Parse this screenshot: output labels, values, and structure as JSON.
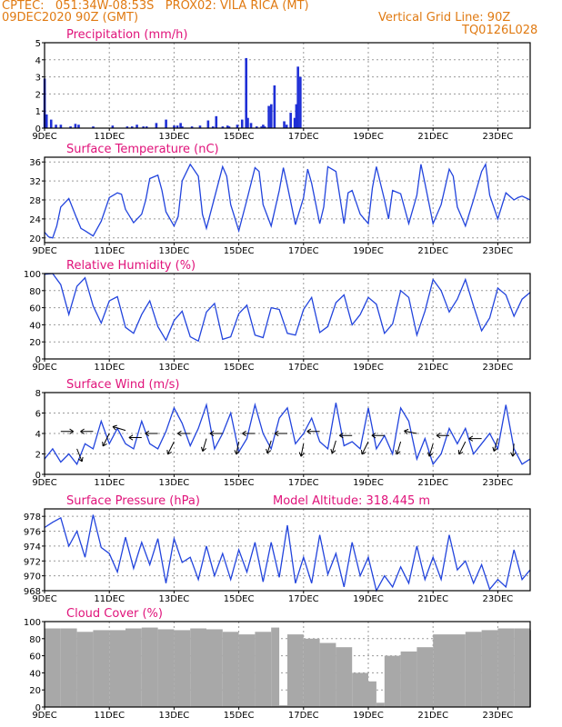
{
  "header": {
    "station_line": "CPTEC:   051:34W-08:53S   PROX02: VILA RICA (MT)",
    "date_line": "09DEC2020 90Z (GMT)",
    "grid_note": "Vertical Grid Line: 90Z",
    "code": "TQ0126L028"
  },
  "colors": {
    "header": "#e07a12",
    "panel_title": "#e0127a",
    "line": "#2244dd",
    "bar": "#1f2fd6",
    "cloud": "#a8a8a8",
    "grid": "#9a9a9a",
    "arrow": "#000000"
  },
  "x_tick_labels": [
    "9DEC",
    "11DEC",
    "13DEC",
    "15DEC",
    "17DEC",
    "19DEC",
    "21DEC",
    "23DEC"
  ],
  "chart_data": [
    {
      "type": "bar",
      "title": "Precipitation (mm/h)",
      "ylim": [
        0,
        5
      ],
      "yticks": [
        0,
        1,
        2,
        3,
        4,
        5
      ],
      "series": [
        {
          "color": "#1f2fd6",
          "x": [
            0.0,
            0.12,
            0.4,
            0.7,
            1.0,
            1.6,
            1.9,
            2.1,
            3.0,
            4.2,
            5.1,
            5.4,
            5.7,
            6.1,
            6.3,
            6.9,
            7.5,
            8.0,
            8.2,
            8.4,
            8.5,
            9.1,
            9.6,
            10.1,
            10.4,
            10.6,
            11.0,
            11.3,
            11.4,
            11.9,
            12.2,
            12.45,
            12.55,
            12.75,
            13.1,
            13.4,
            13.5,
            13.6,
            13.85,
            14.0,
            14.2,
            14.8,
            14.95,
            15.2,
            15.45,
            15.55,
            15.65,
            15.8
          ],
          "values": [
            2.9,
            0.8,
            0.5,
            0.2,
            0.2,
            0.1,
            0.25,
            0.2,
            0.1,
            0.15,
            0.1,
            0.1,
            0.2,
            0.1,
            0.1,
            0.3,
            0.5,
            0.15,
            0.15,
            0.3,
            0.1,
            0.1,
            0.15,
            0.45,
            0.1,
            0.7,
            0.1,
            0.15,
            0.1,
            0.2,
            0.5,
            4.1,
            0.6,
            0.3,
            0.1,
            0.1,
            0.2,
            0.1,
            1.3,
            1.4,
            2.5,
            0.4,
            0.2,
            0.9,
            0.6,
            1.4,
            3.6,
            3.0
          ]
        }
      ]
    },
    {
      "type": "line",
      "title": "Surface Temperature (nC)",
      "ylim": [
        19,
        37
      ],
      "yticks": [
        20,
        24,
        28,
        32,
        36
      ],
      "series": [
        {
          "color": "#2244dd",
          "x": [
            0,
            0.25,
            0.5,
            0.75,
            1.0,
            1.5,
            2.0,
            2.25,
            2.5,
            3.0,
            3.5,
            4.0,
            4.5,
            4.75,
            5.0,
            5.5,
            6.0,
            6.25,
            6.5,
            7.0,
            7.25,
            7.5,
            8.0,
            8.25,
            8.5,
            9.0,
            9.5,
            9.75,
            10.0,
            10.5,
            11.0,
            11.25,
            11.5,
            12.0,
            12.5,
            13.0,
            13.25,
            13.5,
            14.0,
            14.5,
            14.75,
            15.0,
            15.5,
            16.0,
            16.25,
            16.5,
            17.0,
            17.25,
            17.5,
            18.0,
            18.5,
            18.75,
            19.0,
            19.5,
            20.0,
            20.25,
            20.5,
            21.0,
            21.25,
            21.5,
            22.0,
            22.5,
            23.0,
            23.25,
            23.5,
            24.0,
            24.5,
            25.0,
            25.25,
            25.5,
            26.0,
            26.5,
            27.0,
            27.25,
            27.5,
            28.0,
            28.5,
            29.0,
            29.25,
            29.5,
            30.0
          ],
          "values": [
            21.2,
            20.2,
            20.0,
            22.5,
            26.5,
            28.3,
            24.0,
            22.0,
            21.5,
            20.4,
            23.5,
            28.5,
            29.5,
            29.2,
            26.0,
            23.2,
            25.0,
            28.0,
            32.5,
            33.2,
            30.0,
            25.5,
            22.5,
            24.5,
            32.0,
            35.5,
            33.0,
            25.0,
            22.0,
            28.5,
            35.0,
            33.0,
            27.0,
            21.5,
            28.0,
            34.8,
            34.0,
            27.0,
            22.5,
            30.0,
            34.8,
            31.0,
            22.8,
            28.5,
            34.5,
            31.5,
            23.0,
            26.5,
            35.0,
            34.0,
            23.0,
            29.5,
            30.0,
            25.0,
            23.0,
            30.5,
            35.0,
            28.0,
            24.0,
            30.0,
            29.3,
            23.0,
            29.0,
            35.5,
            31.5,
            23.0,
            27.0,
            34.5,
            33.0,
            26.5,
            22.5,
            28.0,
            34.0,
            35.5,
            29.0,
            24.0,
            29.5,
            28.0,
            28.5,
            28.8,
            28.0
          ]
        }
      ]
    },
    {
      "type": "line",
      "title": "Relative Humidity (%)",
      "ylim": [
        0,
        100
      ],
      "yticks": [
        0,
        20,
        40,
        60,
        80,
        100
      ],
      "series": [
        {
          "color": "#2244dd",
          "x": [
            0,
            0.5,
            1.0,
            1.5,
            2.0,
            2.5,
            3.0,
            3.5,
            4.0,
            4.5,
            5.0,
            5.5,
            6.0,
            6.5,
            7.0,
            7.5,
            8.0,
            8.5,
            9.0,
            9.5,
            10.0,
            10.5,
            11.0,
            11.5,
            12.0,
            12.5,
            13.0,
            13.5,
            14.0,
            14.5,
            15.0,
            15.5,
            16.0,
            16.5,
            17.0,
            17.5,
            18.0,
            18.5,
            19.0,
            19.5,
            20.0,
            20.5,
            21.0,
            21.5,
            22.0,
            22.5,
            23.0,
            23.5,
            24.0,
            24.5,
            25.0,
            25.5,
            26.0,
            26.5,
            27.0,
            27.5,
            28.0,
            28.5,
            29.0,
            29.5,
            30.0
          ],
          "values": [
            99,
            100,
            87,
            52,
            85,
            95,
            62,
            42,
            68,
            73,
            37,
            30,
            52,
            68,
            38,
            22,
            45,
            56,
            26,
            21,
            55,
            65,
            23,
            26,
            53,
            63,
            28,
            25,
            60,
            58,
            30,
            28,
            58,
            72,
            31,
            38,
            66,
            75,
            40,
            52,
            72,
            64,
            30,
            41,
            80,
            72,
            28,
            56,
            93,
            80,
            55,
            70,
            93,
            62,
            33,
            48,
            83,
            75,
            50,
            70,
            78
          ]
        }
      ]
    },
    {
      "type": "line",
      "title": "Surface Wind (m/s)",
      "ylim": [
        0,
        8
      ],
      "yticks": [
        0,
        2,
        4,
        6,
        8
      ],
      "series": [
        {
          "color": "#2244dd",
          "x": [
            0,
            0.5,
            1.0,
            1.5,
            2.0,
            2.5,
            3.0,
            3.5,
            4.0,
            4.5,
            5.0,
            5.5,
            6.0,
            6.5,
            7.0,
            7.5,
            8.0,
            8.5,
            9.0,
            9.5,
            10.0,
            10.5,
            11.0,
            11.5,
            12.0,
            12.5,
            13.0,
            13.5,
            14.0,
            14.5,
            15.0,
            15.5,
            16.0,
            16.5,
            17.0,
            17.5,
            18.0,
            18.5,
            19.0,
            19.5,
            20.0,
            20.5,
            21.0,
            21.5,
            22.0,
            22.5,
            23.0,
            23.5,
            24.0,
            24.5,
            25.0,
            25.5,
            26.0,
            26.5,
            27.0,
            27.5,
            28.0,
            28.5,
            29.0,
            29.5,
            30.0
          ],
          "values": [
            1.5,
            2.5,
            1.2,
            2.0,
            1.0,
            3.0,
            2.5,
            5.2,
            3.0,
            4.5,
            3.0,
            2.5,
            5.2,
            3.0,
            2.5,
            4.2,
            6.5,
            5.0,
            2.8,
            4.5,
            6.8,
            2.5,
            4.0,
            6.0,
            2.2,
            3.5,
            6.8,
            4.0,
            2.5,
            5.5,
            6.5,
            3.0,
            4.0,
            5.5,
            3.2,
            2.5,
            7.0,
            2.8,
            3.2,
            2.5,
            6.5,
            2.5,
            3.8,
            2.0,
            6.5,
            5.2,
            1.5,
            3.5,
            1.0,
            2.0,
            4.5,
            3.0,
            4.5,
            2.0,
            3.0,
            4.0,
            2.5,
            6.8,
            2.5,
            1.0,
            1.5
          ]
        }
      ],
      "vectors": [
        {
          "x": 1.0,
          "y": 4.2,
          "u": 1,
          "v": 0
        },
        {
          "x": 2.0,
          "y": 2.5,
          "u": 0.4,
          "v": -1
        },
        {
          "x": 3.0,
          "y": 4.2,
          "u": -1,
          "v": 0
        },
        {
          "x": 4.0,
          "y": 4.0,
          "u": -0.5,
          "v": -1
        },
        {
          "x": 5.0,
          "y": 4.3,
          "u": -1,
          "v": 0.3
        },
        {
          "x": 6.0,
          "y": 3.6,
          "u": -1,
          "v": 0
        },
        {
          "x": 7.0,
          "y": 4.0,
          "u": -1,
          "v": 0
        },
        {
          "x": 8.0,
          "y": 3.2,
          "u": -0.5,
          "v": -1
        },
        {
          "x": 9.0,
          "y": 4.0,
          "u": -1,
          "v": 0
        },
        {
          "x": 10.0,
          "y": 3.5,
          "u": -0.3,
          "v": -1
        },
        {
          "x": 11.0,
          "y": 4.0,
          "u": -1,
          "v": 0
        },
        {
          "x": 12.0,
          "y": 3.2,
          "u": -0.2,
          "v": -1
        },
        {
          "x": 13.0,
          "y": 4.0,
          "u": -1,
          "v": 0
        },
        {
          "x": 14.0,
          "y": 3.3,
          "u": -0.3,
          "v": -1
        },
        {
          "x": 15.0,
          "y": 4.0,
          "u": -1,
          "v": 0
        },
        {
          "x": 16.0,
          "y": 3.0,
          "u": -0.2,
          "v": -1
        },
        {
          "x": 17.0,
          "y": 4.2,
          "u": -1,
          "v": 0
        },
        {
          "x": 18.0,
          "y": 3.3,
          "u": -0.3,
          "v": -1
        },
        {
          "x": 19.0,
          "y": 3.8,
          "u": -1,
          "v": 0
        },
        {
          "x": 20.0,
          "y": 3.2,
          "u": -0.5,
          "v": -1
        },
        {
          "x": 21.0,
          "y": 3.8,
          "u": -1,
          "v": 0
        },
        {
          "x": 22.0,
          "y": 3.2,
          "u": -0.3,
          "v": -1
        },
        {
          "x": 23.0,
          "y": 4.0,
          "u": -1,
          "v": 0.2
        },
        {
          "x": 24.0,
          "y": 3.0,
          "u": -0.3,
          "v": -1
        },
        {
          "x": 25.0,
          "y": 3.8,
          "u": -1,
          "v": 0
        },
        {
          "x": 26.0,
          "y": 3.2,
          "u": -0.5,
          "v": -1
        },
        {
          "x": 27.0,
          "y": 3.5,
          "u": -1,
          "v": 0
        },
        {
          "x": 28.0,
          "y": 3.5,
          "u": -0.3,
          "v": -1
        },
        {
          "x": 29.0,
          "y": 3.0,
          "u": -0.1,
          "v": -1
        }
      ]
    },
    {
      "type": "line",
      "title": "Surface Pressure (hPa)",
      "subtitle": "Model Altitude: 318.445  m",
      "ylim": [
        968,
        979
      ],
      "yticks": [
        968,
        970,
        972,
        974,
        976,
        978
      ],
      "series": [
        {
          "color": "#2244dd",
          "x": [
            0,
            0.5,
            1.0,
            1.5,
            2.0,
            2.5,
            3.0,
            3.5,
            4.0,
            4.5,
            5.0,
            5.5,
            6.0,
            6.5,
            7.0,
            7.5,
            8.0,
            8.5,
            9.0,
            9.5,
            10.0,
            10.5,
            11.0,
            11.5,
            12.0,
            12.5,
            13.0,
            13.5,
            14.0,
            14.5,
            15.0,
            15.5,
            16.0,
            16.5,
            17.0,
            17.5,
            18.0,
            18.5,
            19.0,
            19.5,
            20.0,
            20.5,
            21.0,
            21.5,
            22.0,
            22.5,
            23.0,
            23.5,
            24.0,
            24.5,
            25.0,
            25.5,
            26.0,
            26.5,
            27.0,
            27.5,
            28.0,
            28.5,
            29.0,
            29.5,
            30.0
          ],
          "values": [
            976.5,
            977.2,
            977.8,
            974.0,
            976.0,
            972.5,
            978.2,
            973.8,
            973.0,
            970.5,
            975.2,
            971.0,
            974.5,
            971.5,
            975.0,
            969.0,
            975.0,
            971.8,
            972.5,
            969.5,
            974.0,
            970.0,
            973.0,
            969.5,
            973.5,
            970.5,
            974.5,
            969.2,
            974.5,
            969.8,
            976.8,
            969.0,
            972.5,
            969.0,
            975.5,
            970.2,
            973.0,
            968.5,
            974.5,
            970.0,
            972.5,
            968.0,
            970.0,
            968.5,
            971.2,
            969.0,
            974.0,
            969.5,
            972.5,
            969.5,
            975.5,
            970.8,
            972.0,
            969.0,
            971.5,
            968.2,
            969.5,
            968.5,
            973.5,
            969.5,
            970.8
          ]
        }
      ]
    },
    {
      "type": "bar",
      "title": "Cloud Cover (%)",
      "ylim": [
        0,
        100
      ],
      "yticks": [
        0,
        20,
        40,
        60,
        80,
        100
      ],
      "series": [
        {
          "color": "#a8a8a8",
          "x": [
            0,
            1,
            2,
            3,
            4,
            5,
            6,
            7,
            8,
            9,
            10,
            11,
            12,
            13,
            14,
            14.5,
            15,
            16,
            17,
            18,
            19,
            20,
            20.5,
            21,
            22,
            23,
            24,
            25,
            26,
            27,
            28,
            29,
            30
          ],
          "values": [
            92,
            92,
            88,
            90,
            90,
            92,
            93,
            91,
            90,
            92,
            91,
            88,
            85,
            88,
            93,
            2,
            85,
            80,
            75,
            70,
            40,
            30,
            5,
            60,
            65,
            70,
            85,
            85,
            88,
            90,
            92,
            92,
            90
          ]
        }
      ]
    }
  ]
}
